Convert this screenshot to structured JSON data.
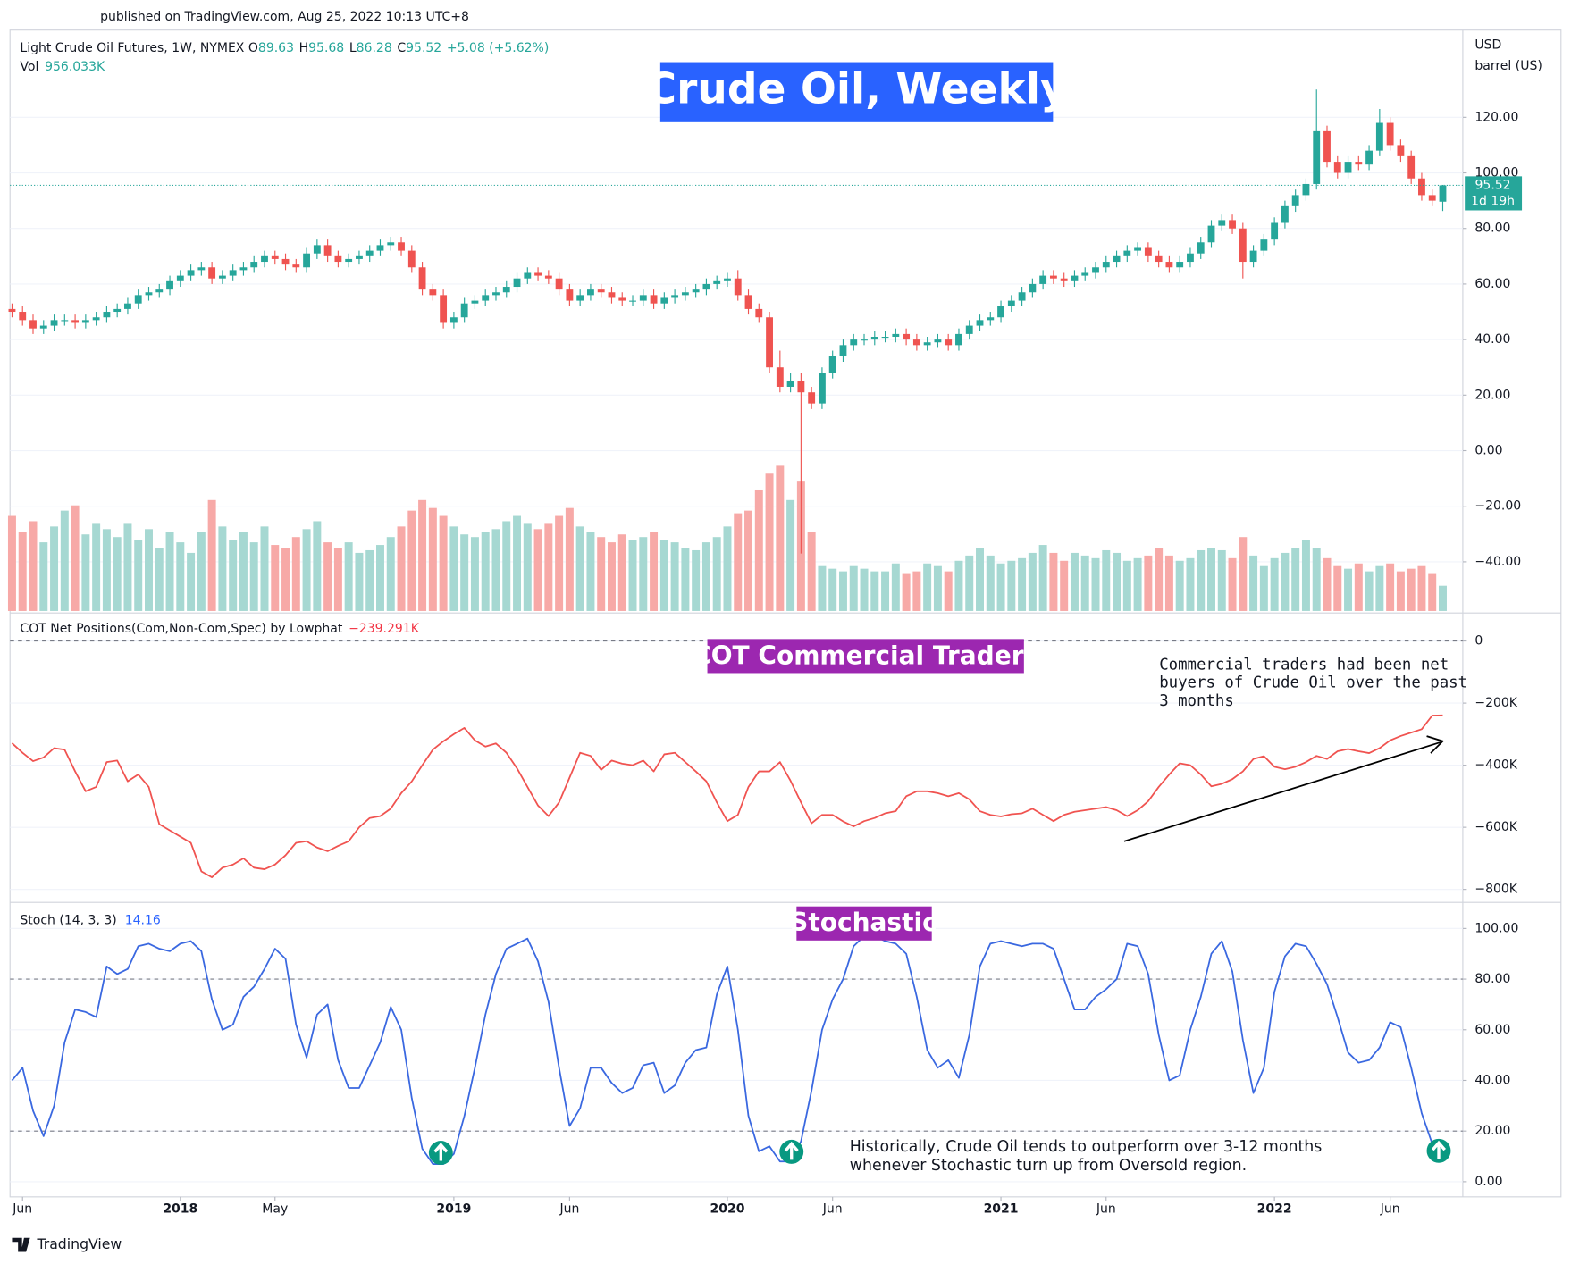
{
  "header": {
    "published": "published on TradingView.com, Aug 25, 2022 10:13 UTC+8"
  },
  "footer": {
    "brand": "TradingView"
  },
  "chart_data": [
    {
      "type": "candlestick",
      "title": "Crude Oil, Weekly",
      "symbol": "Light Crude Oil Futures, 1W, NYMEX",
      "ohlc_keys": [
        "O",
        "H",
        "L",
        "C"
      ],
      "change": "+5.08 (+5.62%)",
      "volume_name": "Vol",
      "volume_label": "956.033K",
      "axis_unit": [
        "USD",
        "barrel (US)"
      ],
      "countdown": "1d 19h",
      "up_color": "#26a69a",
      "down_color": "#ef5350",
      "up_volume_color": "#a6d8d2",
      "down_volume_color": "#f7a9a7",
      "grid": true,
      "ylim": [
        -57.7,
        151.4
      ],
      "yticks": [
        {
          "value": -40,
          "label": "−40.00"
        },
        {
          "value": -20,
          "label": "−20.00"
        },
        {
          "value": 0,
          "label": "0.00"
        },
        {
          "value": 20,
          "label": "20.00"
        },
        {
          "value": 40,
          "label": "40.00"
        },
        {
          "value": 60,
          "label": "60.00"
        },
        {
          "value": 80,
          "label": "80.00"
        },
        {
          "value": 100,
          "label": "100.00"
        },
        {
          "value": 120,
          "label": "120.00"
        }
      ],
      "volume_ylim": [
        0,
        22000
      ],
      "categories": [
        null,
        "Jun",
        null,
        null,
        null,
        null,
        null,
        null,
        null,
        null,
        null,
        null,
        null,
        null,
        null,
        null,
        "2018",
        null,
        null,
        null,
        null,
        null,
        null,
        null,
        null,
        "May",
        null,
        null,
        null,
        null,
        null,
        null,
        null,
        null,
        null,
        null,
        null,
        null,
        null,
        null,
        null,
        null,
        "2019",
        null,
        null,
        null,
        null,
        null,
        null,
        null,
        null,
        null,
        null,
        "Jun",
        null,
        null,
        null,
        null,
        null,
        null,
        null,
        null,
        null,
        null,
        null,
        null,
        null,
        null,
        "2020",
        null,
        null,
        null,
        null,
        null,
        null,
        null,
        null,
        null,
        "Jun",
        null,
        null,
        null,
        null,
        null,
        null,
        null,
        null,
        null,
        null,
        null,
        null,
        null,
        null,
        null,
        "2021",
        null,
        null,
        null,
        null,
        null,
        null,
        null,
        null,
        null,
        "Jun",
        null,
        null,
        null,
        null,
        null,
        null,
        null,
        null,
        null,
        null,
        null,
        null,
        null,
        null,
        null,
        "2022",
        null,
        null,
        null,
        null,
        null,
        null,
        null,
        null,
        null,
        null,
        "Jun",
        null,
        null,
        null,
        null,
        null
      ],
      "open": [
        51,
        50,
        47,
        44,
        45,
        47,
        47,
        46,
        47,
        48,
        50,
        51,
        53,
        56,
        57,
        58,
        61,
        63,
        65,
        66,
        62,
        63,
        65,
        66,
        68,
        70,
        69,
        67,
        66,
        71,
        74,
        70,
        68,
        69,
        70,
        72,
        74,
        75,
        72,
        66,
        58,
        56,
        46,
        48,
        53,
        54,
        56,
        57,
        59,
        62,
        64,
        63,
        62,
        58,
        54,
        56,
        58,
        57,
        55,
        54,
        54,
        56,
        53,
        55,
        56,
        57,
        58,
        60,
        61,
        62,
        56,
        51,
        48,
        30,
        23,
        25,
        21,
        17,
        28,
        34,
        38,
        40,
        40,
        41,
        41,
        42,
        40,
        38,
        39,
        40,
        38,
        42,
        45,
        47,
        48,
        52,
        54,
        57,
        60,
        63,
        62,
        61,
        63,
        64,
        66,
        68,
        70,
        72,
        73,
        70,
        68,
        66,
        68,
        71,
        75,
        81,
        83,
        80,
        68,
        72,
        76,
        82,
        88,
        92,
        96,
        115,
        104,
        100,
        104,
        103,
        108,
        118,
        110,
        106,
        98,
        92,
        89.63
      ],
      "high": [
        53,
        52,
        49,
        47,
        49,
        49,
        49,
        49,
        50,
        52,
        53,
        55,
        58,
        59,
        60,
        63,
        65,
        67,
        68,
        68,
        65,
        67,
        68,
        70,
        72,
        72,
        71,
        69,
        73,
        76,
        76,
        72,
        71,
        72,
        74,
        76,
        77,
        77,
        74,
        68,
        60,
        58,
        50,
        55,
        56,
        58,
        59,
        61,
        64,
        66,
        66,
        65,
        64,
        60,
        58,
        60,
        60,
        59,
        57,
        56,
        58,
        58,
        57,
        58,
        59,
        60,
        62,
        63,
        64,
        65,
        58,
        53,
        50,
        36,
        28,
        28,
        23,
        30,
        36,
        40,
        42,
        42,
        43,
        43,
        44,
        44,
        42,
        41,
        42,
        42,
        44,
        47,
        49,
        50,
        54,
        56,
        59,
        62,
        65,
        65,
        64,
        65,
        66,
        68,
        70,
        72,
        74,
        75,
        75,
        72,
        70,
        70,
        73,
        77,
        83,
        85,
        85,
        82,
        74,
        78,
        84,
        90,
        94,
        98,
        130,
        117,
        106,
        106,
        106,
        110,
        123,
        120,
        112,
        108,
        100,
        94,
        95.68
      ],
      "low": [
        48,
        45,
        42,
        42,
        43,
        45,
        44,
        44,
        45,
        46,
        48,
        49,
        51,
        54,
        55,
        56,
        59,
        61,
        63,
        60,
        60,
        61,
        63,
        64,
        66,
        67,
        65,
        64,
        64,
        69,
        68,
        66,
        66,
        67,
        68,
        70,
        72,
        70,
        64,
        56,
        54,
        44,
        44,
        46,
        51,
        52,
        54,
        55,
        57,
        60,
        61,
        60,
        56,
        52,
        52,
        54,
        55,
        53,
        52,
        52,
        52,
        51,
        51,
        53,
        54,
        55,
        56,
        58,
        59,
        54,
        49,
        46,
        28,
        21,
        21,
        -37,
        15,
        15,
        26,
        32,
        36,
        38,
        38,
        39,
        39,
        38,
        36,
        36,
        37,
        36,
        36,
        40,
        43,
        45,
        46,
        50,
        52,
        55,
        58,
        60,
        59,
        59,
        61,
        62,
        64,
        66,
        68,
        70,
        68,
        66,
        64,
        64,
        66,
        69,
        73,
        79,
        78,
        62,
        66,
        70,
        74,
        80,
        86,
        90,
        94,
        102,
        98,
        98,
        101,
        101,
        106,
        108,
        104,
        96,
        90,
        88,
        86.28
      ],
      "close": [
        50,
        47,
        44,
        45,
        47,
        47,
        46,
        47,
        48,
        50,
        51,
        53,
        56,
        57,
        58,
        61,
        63,
        65,
        66,
        62,
        63,
        65,
        66,
        68,
        70,
        69,
        67,
        66,
        71,
        74,
        70,
        68,
        69,
        70,
        72,
        74,
        75,
        72,
        66,
        58,
        56,
        46,
        48,
        53,
        54,
        56,
        57,
        59,
        62,
        64,
        63,
        62,
        58,
        54,
        56,
        58,
        57,
        55,
        54,
        54,
        56,
        53,
        55,
        56,
        57,
        58,
        60,
        61,
        62,
        56,
        51,
        48,
        30,
        23,
        25,
        21,
        17,
        28,
        34,
        38,
        40,
        40,
        41,
        41,
        42,
        40,
        38,
        39,
        40,
        38,
        42,
        45,
        47,
        48,
        52,
        54,
        57,
        60,
        63,
        62,
        61,
        63,
        64,
        66,
        68,
        70,
        72,
        73,
        70,
        68,
        66,
        68,
        71,
        75,
        81,
        83,
        80,
        68,
        72,
        76,
        82,
        88,
        92,
        96,
        115,
        104,
        100,
        104,
        103,
        108,
        118,
        110,
        106,
        98,
        92,
        90,
        95.52
      ],
      "volume": [
        3600,
        3000,
        3400,
        2600,
        3200,
        3800,
        4000,
        2900,
        3300,
        3100,
        2800,
        3300,
        2700,
        3100,
        2400,
        3000,
        2600,
        2200,
        3000,
        4200,
        3200,
        2700,
        3000,
        2600,
        3200,
        2500,
        2400,
        2800,
        3100,
        3400,
        2600,
        2400,
        2600,
        2200,
        2300,
        2500,
        2800,
        3200,
        3800,
        4200,
        3900,
        3600,
        3200,
        2900,
        2800,
        3000,
        3100,
        3400,
        3600,
        3300,
        3100,
        3300,
        3600,
        3900,
        3200,
        3000,
        2800,
        2600,
        2900,
        2700,
        2800,
        3000,
        2700,
        2600,
        2400,
        2300,
        2600,
        2800,
        3200,
        3700,
        3800,
        4600,
        5200,
        5500,
        4200,
        4900,
        3000,
        1700,
        1600,
        1500,
        1700,
        1600,
        1500,
        1500,
        1800,
        1400,
        1500,
        1800,
        1700,
        1500,
        1900,
        2100,
        2400,
        2100,
        1800,
        1900,
        2000,
        2200,
        2500,
        2200,
        1900,
        2200,
        2100,
        2000,
        2300,
        2200,
        1900,
        2000,
        2100,
        2400,
        2100,
        1900,
        2000,
        2300,
        2400,
        2300,
        2000,
        2800,
        2100,
        1700,
        2000,
        2200,
        2400,
        2700,
        2400,
        2000,
        1700,
        1600,
        1800,
        1500,
        1700,
        1800,
        1500,
        1600,
        1700,
        1400,
        956.033
      ]
    },
    {
      "type": "line",
      "title": "COT Commercial Traders",
      "name": "COT Net Positions(Com,Non-Com,Spec) by Lowphat",
      "last_label": "−239.291K",
      "color": "#f05350",
      "grid": true,
      "levels": [
        0
      ],
      "ylim": [
        -838.7,
        80.6
      ],
      "yticks": [
        0,
        {
          "value": -200,
          "label": "−200K"
        },
        {
          "value": -400,
          "label": "−400K"
        },
        {
          "value": -600,
          "label": "−600K"
        },
        {
          "value": -800,
          "label": "−800K"
        }
      ],
      "annotation": [
        "Commercial traders  had been net",
        "buyers of Crude Oil over the past",
        "3 months"
      ],
      "values": [
        -329,
        -360,
        -387,
        -375,
        -345,
        -350,
        -420,
        -484,
        -470,
        -390,
        -385,
        -452,
        -430,
        -470,
        -590,
        -610,
        -630,
        -650,
        -742,
        -761,
        -730,
        -720,
        -700,
        -730,
        -735,
        -720,
        -690,
        -650,
        -645,
        -665,
        -677,
        -660,
        -645,
        -600,
        -570,
        -564,
        -540,
        -490,
        -452,
        -400,
        -350,
        -323,
        -300,
        -280,
        -320,
        -340,
        -330,
        -360,
        -410,
        -470,
        -530,
        -564,
        -520,
        -440,
        -360,
        -370,
        -415,
        -385,
        -395,
        -400,
        -385,
        -420,
        -365,
        -360,
        -390,
        -420,
        -452,
        -520,
        -580,
        -560,
        -470,
        -420,
        -420,
        -390,
        -450,
        -520,
        -587,
        -560,
        -560,
        -581,
        -597,
        -580,
        -570,
        -555,
        -548,
        -500,
        -484,
        -484,
        -490,
        -500,
        -490,
        -510,
        -548,
        -560,
        -565,
        -558,
        -555,
        -540,
        -560,
        -580,
        -560,
        -550,
        -545,
        -540,
        -535,
        -545,
        -564,
        -545,
        -516,
        -470,
        -430,
        -394,
        -400,
        -430,
        -468,
        -460,
        -445,
        -420,
        -380,
        -371,
        -405,
        -413,
        -405,
        -390,
        -370,
        -380,
        -355,
        -348,
        -355,
        -361,
        -345,
        -320,
        -306,
        -295,
        -284,
        -240,
        -239.291
      ]
    },
    {
      "type": "line",
      "title": "Stochastic",
      "name": "Stoch (14, 3, 3)",
      "color": "#3a68e0",
      "grid": true,
      "levels": [
        20,
        80
      ],
      "ylim": [
        -4,
        108.7
      ],
      "yticks": [
        {
          "value": 0,
          "label": "0.00"
        },
        {
          "value": 20,
          "label": "20.00"
        },
        {
          "value": 40,
          "label": "40.00"
        },
        {
          "value": 60,
          "label": "60.00"
        },
        {
          "value": 80,
          "label": "80.00"
        },
        {
          "value": 100,
          "label": "100.00"
        }
      ],
      "annotation": [
        "Historically, Crude Oil tends to outperform over 3-12 months",
        "whenever Stochastic turn up from Oversold region."
      ],
      "values": [
        40,
        45,
        28,
        18,
        30,
        55,
        68,
        67,
        65,
        85,
        82,
        84,
        93,
        94,
        92,
        91,
        94,
        95,
        91,
        72,
        60,
        62,
        73,
        77,
        84,
        92,
        88,
        62,
        49,
        66,
        70,
        48,
        37,
        37,
        46,
        55,
        69,
        60,
        33,
        13,
        7,
        7,
        11,
        26,
        45,
        66,
        82,
        92,
        94,
        96,
        87,
        71,
        45,
        22,
        29,
        45,
        45,
        39,
        35,
        37,
        46,
        47,
        35,
        38,
        47,
        52,
        53,
        74,
        85,
        60,
        26,
        12,
        14,
        8,
        8,
        16,
        36,
        60,
        72,
        80,
        93,
        97,
        97,
        95,
        94,
        90,
        73,
        52,
        45,
        48,
        41,
        58,
        85,
        94,
        95,
        94,
        93,
        94,
        94,
        92,
        80,
        68,
        68,
        73,
        76,
        80,
        94,
        93,
        82,
        58,
        40,
        42,
        60,
        73,
        90,
        95,
        83,
        56,
        35,
        45,
        75,
        89,
        94,
        93,
        86,
        78,
        65,
        51,
        47,
        48,
        53,
        63,
        61,
        45,
        27,
        15,
        14.16
      ]
    }
  ]
}
